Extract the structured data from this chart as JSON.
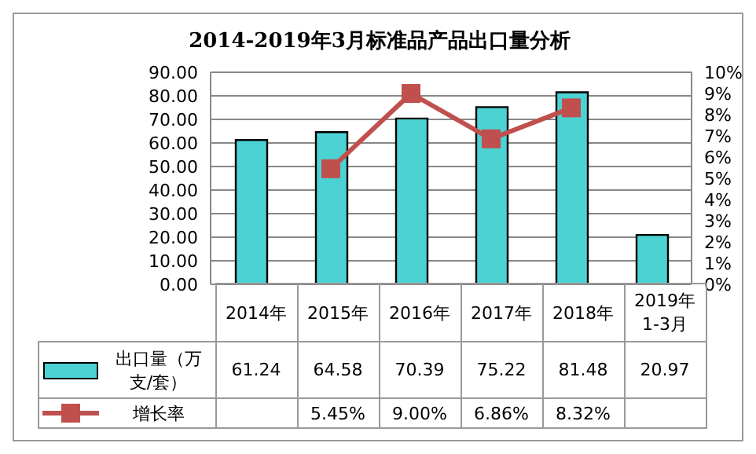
{
  "chart_data": {
    "type": "bar",
    "title": "2014-2019年3月标准品产品出口量分析",
    "categories": [
      "2014年",
      "2015年",
      "2016年",
      "2017年",
      "2018年",
      "2019年\n1-3月"
    ],
    "series": [
      {
        "name": "出口量（万支/套）",
        "color": "#4dd2d3",
        "values": [
          61.24,
          64.58,
          70.39,
          75.22,
          81.48,
          20.97
        ],
        "value_labels": [
          "61.24",
          "64.58",
          "70.39",
          "75.22",
          "81.48",
          "20.97"
        ]
      },
      {
        "name": "增长率",
        "type": "line",
        "axis": "y2",
        "color": "#c0504d",
        "values": [
          null,
          5.45,
          9.0,
          6.86,
          8.32,
          null
        ],
        "value_labels": [
          null,
          "5.45%",
          "9.00%",
          "6.86%",
          "8.32%",
          null
        ]
      }
    ],
    "ylim": [
      0,
      90
    ],
    "yticks": [
      {
        "value": 0,
        "label": "0.00"
      },
      {
        "value": 10,
        "label": "10.00"
      },
      {
        "value": 20,
        "label": "20.00"
      },
      {
        "value": 30,
        "label": "30.00"
      },
      {
        "value": 40,
        "label": "40.00"
      },
      {
        "value": 50,
        "label": "50.00"
      },
      {
        "value": 60,
        "label": "60.00"
      },
      {
        "value": 70,
        "label": "70.00"
      },
      {
        "value": 80,
        "label": "80.00"
      },
      {
        "value": 90,
        "label": "90.00"
      }
    ],
    "y2lim": [
      0,
      10
    ],
    "y2ticks": [
      {
        "value": 0,
        "label": "0%"
      },
      {
        "value": 1,
        "label": "1%"
      },
      {
        "value": 2,
        "label": "2%"
      },
      {
        "value": 3,
        "label": "3%"
      },
      {
        "value": 4,
        "label": "4%"
      },
      {
        "value": 5,
        "label": "5%"
      },
      {
        "value": 6,
        "label": "6%"
      },
      {
        "value": 7,
        "label": "7%"
      },
      {
        "value": 8,
        "label": "8%"
      },
      {
        "value": 9,
        "label": "9%"
      },
      {
        "value": 10,
        "label": "10%"
      }
    ],
    "grid": "y",
    "legend": "bottom left",
    "marker": "square",
    "line_style": "solid"
  }
}
